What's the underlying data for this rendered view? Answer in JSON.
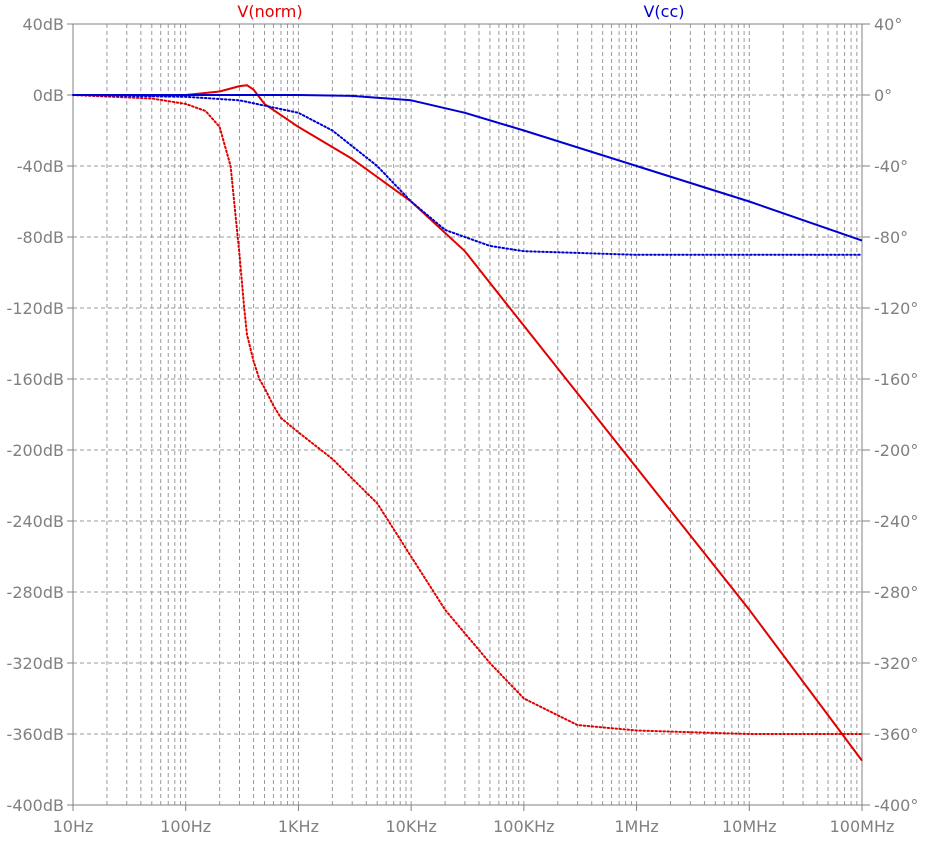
{
  "chart_data": {
    "type": "line",
    "x_scale": "log",
    "x_unit": "Hz",
    "xlim": [
      10,
      100000000
    ],
    "ylim_left": [
      -400,
      40
    ],
    "ylim_right": [
      -400,
      40
    ],
    "grid": true,
    "x_ticks": [
      {
        "value": 10,
        "label": "10Hz"
      },
      {
        "value": 100,
        "label": "100Hz"
      },
      {
        "value": 1000,
        "label": "1KHz"
      },
      {
        "value": 10000,
        "label": "10KHz"
      },
      {
        "value": 100000,
        "label": "100KHz"
      },
      {
        "value": 1000000,
        "label": "1MHz"
      },
      {
        "value": 10000000,
        "label": "10MHz"
      },
      {
        "value": 100000000,
        "label": "100MHz"
      }
    ],
    "y_ticks_left": [
      {
        "value": 40,
        "label": "40dB"
      },
      {
        "value": 0,
        "label": "0dB"
      },
      {
        "value": -40,
        "label": "-40dB"
      },
      {
        "value": -80,
        "label": "-80dB"
      },
      {
        "value": -120,
        "label": "-120dB"
      },
      {
        "value": -160,
        "label": "-160dB"
      },
      {
        "value": -200,
        "label": "-200dB"
      },
      {
        "value": -240,
        "label": "-240dB"
      },
      {
        "value": -280,
        "label": "-280dB"
      },
      {
        "value": -320,
        "label": "-320dB"
      },
      {
        "value": -360,
        "label": "-360dB"
      },
      {
        "value": -400,
        "label": "-400dB"
      }
    ],
    "y_ticks_right": [
      {
        "value": 40,
        "label": "40°"
      },
      {
        "value": 0,
        "label": "0°"
      },
      {
        "value": -40,
        "label": "-40°"
      },
      {
        "value": -80,
        "label": "-80°"
      },
      {
        "value": -120,
        "label": "-120°"
      },
      {
        "value": -160,
        "label": "-160°"
      },
      {
        "value": -200,
        "label": "-200°"
      },
      {
        "value": -240,
        "label": "-240°"
      },
      {
        "value": -280,
        "label": "-280°"
      },
      {
        "value": -320,
        "label": "-320°"
      },
      {
        "value": -360,
        "label": "-360°"
      },
      {
        "value": -400,
        "label": "-400°"
      }
    ],
    "series": [
      {
        "name": "V(norm)",
        "color": "#e00000",
        "legend_position": "top-left",
        "magnitude_db": {
          "x": [
            10,
            100,
            200,
            300,
            350,
            400,
            500,
            1000,
            3000,
            10000,
            30000,
            100000,
            1000000,
            10000000,
            100000000
          ],
          "y": [
            0,
            0,
            2,
            5,
            5.5,
            3,
            -5,
            -18,
            -36,
            -60,
            -88,
            -130,
            -210,
            -290,
            -375
          ]
        },
        "phase_deg": {
          "x": [
            10,
            50,
            100,
            150,
            200,
            250,
            300,
            330,
            350,
            400,
            450,
            500,
            600,
            700,
            1000,
            2000,
            5000,
            10000,
            20000,
            50000,
            100000,
            300000,
            1000000,
            10000000,
            100000000
          ],
          "y": [
            0,
            -2,
            -5,
            -9,
            -18,
            -40,
            -90,
            -120,
            -135,
            -150,
            -160,
            -165,
            -175,
            -182,
            -190,
            -205,
            -230,
            -260,
            -290,
            -320,
            -340,
            -355,
            -358,
            -360,
            -360
          ]
        }
      },
      {
        "name": "V(cc)",
        "color": "#0000d0",
        "legend_position": "top-right",
        "magnitude_db": {
          "x": [
            10,
            100,
            1000,
            3000,
            10000,
            30000,
            100000,
            1000000,
            10000000,
            100000000
          ],
          "y": [
            0,
            0,
            0,
            -0.5,
            -3,
            -10,
            -20,
            -40,
            -60,
            -82
          ]
        },
        "phase_deg": {
          "x": [
            10,
            100,
            300,
            1000,
            2000,
            5000,
            10000,
            20000,
            30000,
            50000,
            100000,
            1000000,
            10000000,
            100000000
          ],
          "y": [
            0,
            -1,
            -3,
            -10,
            -20,
            -40,
            -60,
            -76,
            -80,
            -85,
            -88,
            -90,
            -90,
            -90
          ]
        }
      }
    ]
  }
}
